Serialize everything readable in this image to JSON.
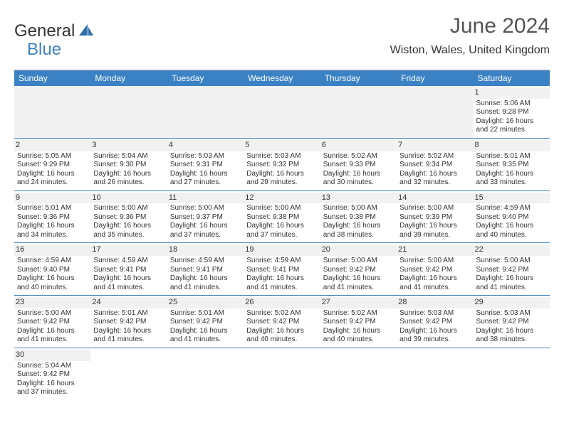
{
  "brand": {
    "textA": "General",
    "textB": "Blue"
  },
  "title": "June 2024",
  "location": "Wiston, Wales, United Kingdom",
  "colors": {
    "header_bg": "#3b82c4",
    "header_text": "#ffffff",
    "rule": "#3b82c4",
    "empty_bg": "#f1f1f1",
    "page_bg": "#ffffff",
    "text": "#333333"
  },
  "dayHeaders": [
    "Sunday",
    "Monday",
    "Tuesday",
    "Wednesday",
    "Thursday",
    "Friday",
    "Saturday"
  ],
  "weeks": [
    [
      null,
      null,
      null,
      null,
      null,
      null,
      {
        "n": "1",
        "sr": "5:06 AM",
        "ss": "9:28 PM",
        "dl": "16 hours and 22 minutes."
      }
    ],
    [
      {
        "n": "2",
        "sr": "5:05 AM",
        "ss": "9:29 PM",
        "dl": "16 hours and 24 minutes."
      },
      {
        "n": "3",
        "sr": "5:04 AM",
        "ss": "9:30 PM",
        "dl": "16 hours and 26 minutes."
      },
      {
        "n": "4",
        "sr": "5:03 AM",
        "ss": "9:31 PM",
        "dl": "16 hours and 27 minutes."
      },
      {
        "n": "5",
        "sr": "5:03 AM",
        "ss": "9:32 PM",
        "dl": "16 hours and 29 minutes."
      },
      {
        "n": "6",
        "sr": "5:02 AM",
        "ss": "9:33 PM",
        "dl": "16 hours and 30 minutes."
      },
      {
        "n": "7",
        "sr": "5:02 AM",
        "ss": "9:34 PM",
        "dl": "16 hours and 32 minutes."
      },
      {
        "n": "8",
        "sr": "5:01 AM",
        "ss": "9:35 PM",
        "dl": "16 hours and 33 minutes."
      }
    ],
    [
      {
        "n": "9",
        "sr": "5:01 AM",
        "ss": "9:36 PM",
        "dl": "16 hours and 34 minutes."
      },
      {
        "n": "10",
        "sr": "5:00 AM",
        "ss": "9:36 PM",
        "dl": "16 hours and 35 minutes."
      },
      {
        "n": "11",
        "sr": "5:00 AM",
        "ss": "9:37 PM",
        "dl": "16 hours and 37 minutes."
      },
      {
        "n": "12",
        "sr": "5:00 AM",
        "ss": "9:38 PM",
        "dl": "16 hours and 37 minutes."
      },
      {
        "n": "13",
        "sr": "5:00 AM",
        "ss": "9:38 PM",
        "dl": "16 hours and 38 minutes."
      },
      {
        "n": "14",
        "sr": "5:00 AM",
        "ss": "9:39 PM",
        "dl": "16 hours and 39 minutes."
      },
      {
        "n": "15",
        "sr": "4:59 AM",
        "ss": "9:40 PM",
        "dl": "16 hours and 40 minutes."
      }
    ],
    [
      {
        "n": "16",
        "sr": "4:59 AM",
        "ss": "9:40 PM",
        "dl": "16 hours and 40 minutes."
      },
      {
        "n": "17",
        "sr": "4:59 AM",
        "ss": "9:41 PM",
        "dl": "16 hours and 41 minutes."
      },
      {
        "n": "18",
        "sr": "4:59 AM",
        "ss": "9:41 PM",
        "dl": "16 hours and 41 minutes."
      },
      {
        "n": "19",
        "sr": "4:59 AM",
        "ss": "9:41 PM",
        "dl": "16 hours and 41 minutes."
      },
      {
        "n": "20",
        "sr": "5:00 AM",
        "ss": "9:42 PM",
        "dl": "16 hours and 41 minutes."
      },
      {
        "n": "21",
        "sr": "5:00 AM",
        "ss": "9:42 PM",
        "dl": "16 hours and 41 minutes."
      },
      {
        "n": "22",
        "sr": "5:00 AM",
        "ss": "9:42 PM",
        "dl": "16 hours and 41 minutes."
      }
    ],
    [
      {
        "n": "23",
        "sr": "5:00 AM",
        "ss": "9:42 PM",
        "dl": "16 hours and 41 minutes."
      },
      {
        "n": "24",
        "sr": "5:01 AM",
        "ss": "9:42 PM",
        "dl": "16 hours and 41 minutes."
      },
      {
        "n": "25",
        "sr": "5:01 AM",
        "ss": "9:42 PM",
        "dl": "16 hours and 41 minutes."
      },
      {
        "n": "26",
        "sr": "5:02 AM",
        "ss": "9:42 PM",
        "dl": "16 hours and 40 minutes."
      },
      {
        "n": "27",
        "sr": "5:02 AM",
        "ss": "9:42 PM",
        "dl": "16 hours and 40 minutes."
      },
      {
        "n": "28",
        "sr": "5:03 AM",
        "ss": "9:42 PM",
        "dl": "16 hours and 39 minutes."
      },
      {
        "n": "29",
        "sr": "5:03 AM",
        "ss": "9:42 PM",
        "dl": "16 hours and 38 minutes."
      }
    ],
    [
      {
        "n": "30",
        "sr": "5:04 AM",
        "ss": "9:42 PM",
        "dl": "16 hours and 37 minutes."
      },
      null,
      null,
      null,
      null,
      null,
      null
    ]
  ],
  "labels": {
    "sunrise": "Sunrise:",
    "sunset": "Sunset:",
    "daylight": "Daylight:"
  }
}
